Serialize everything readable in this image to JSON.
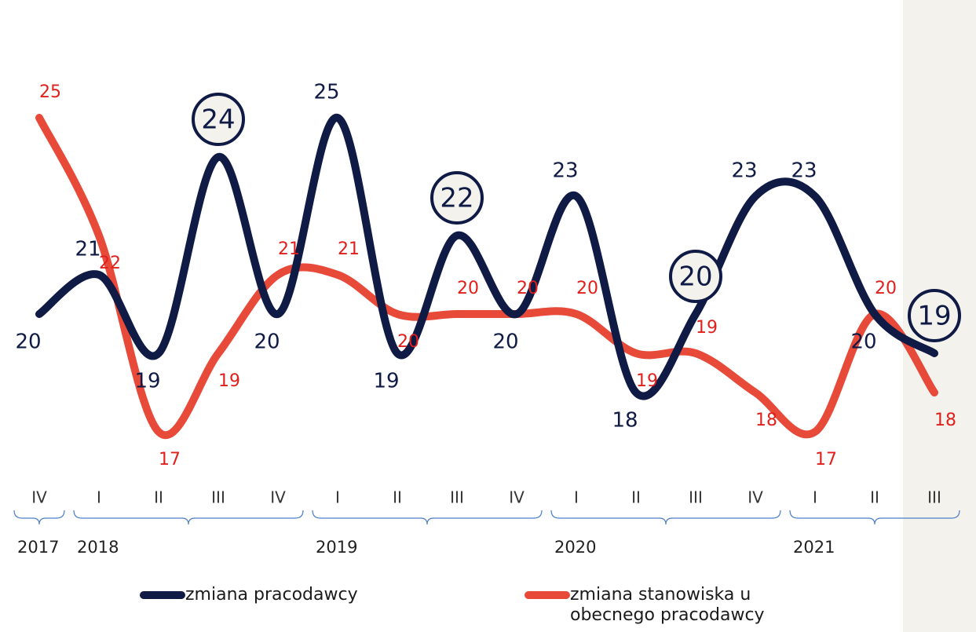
{
  "chart_data": {
    "type": "line",
    "categories": [
      "IV",
      "I",
      "II",
      "III",
      "IV",
      "I",
      "II",
      "III",
      "IV",
      "I",
      "II",
      "III",
      "IV",
      "I",
      "II",
      "III"
    ],
    "groups": [
      {
        "label": "2017",
        "span": 1
      },
      {
        "label": "2018",
        "span": 4
      },
      {
        "label": "2019",
        "span": 4
      },
      {
        "label": "2020",
        "span": 4
      },
      {
        "label": "2021",
        "span": 3
      }
    ],
    "series": [
      {
        "name": "zmiana pracodawcy",
        "color": "#0f1a45",
        "label_color": "#0f1a45",
        "values": [
          20,
          21,
          19,
          24,
          20,
          25,
          19,
          22,
          20,
          23,
          18,
          20,
          23,
          23,
          20,
          19
        ],
        "highlighted": [
          3,
          7,
          11,
          15
        ]
      },
      {
        "name": "zmiana stanowiska u obecnego pracodawcy",
        "color": "#e84a3a",
        "label_color": "#e0201c",
        "values": [
          25,
          22,
          17,
          19,
          21,
          21,
          20,
          20,
          20,
          20,
          19,
          19,
          18,
          17,
          20,
          18
        ]
      }
    ],
    "ylim": [
      15.5,
      27.5
    ]
  }
}
